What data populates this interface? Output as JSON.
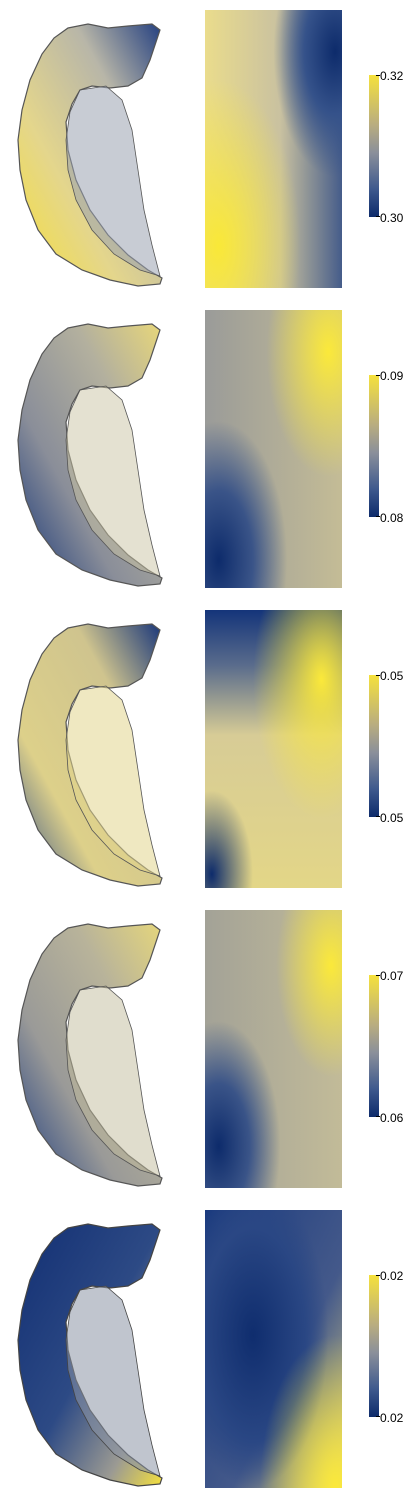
{
  "colors": {
    "high": "#f5e13c",
    "mid": "#8a8f9a",
    "low": "#0d2b6b"
  },
  "panels": [
    {
      "max_label": "0.32",
      "min_label": "0.30",
      "surface_icon": "hippocampus-surface-icon",
      "flatmap_icon": "flatmap-icon"
    },
    {
      "max_label": "0.09",
      "min_label": "0.08",
      "surface_icon": "hippocampus-surface-icon",
      "flatmap_icon": "flatmap-icon"
    },
    {
      "max_label": "0.05",
      "min_label": "0.05",
      "surface_icon": "hippocampus-surface-icon",
      "flatmap_icon": "flatmap-icon"
    },
    {
      "max_label": "0.07",
      "min_label": "0.06",
      "surface_icon": "hippocampus-surface-icon",
      "flatmap_icon": "flatmap-icon"
    },
    {
      "max_label": "0.02",
      "min_label": "0.02",
      "surface_icon": "hippocampus-surface-icon",
      "flatmap_icon": "flatmap-icon"
    }
  ]
}
